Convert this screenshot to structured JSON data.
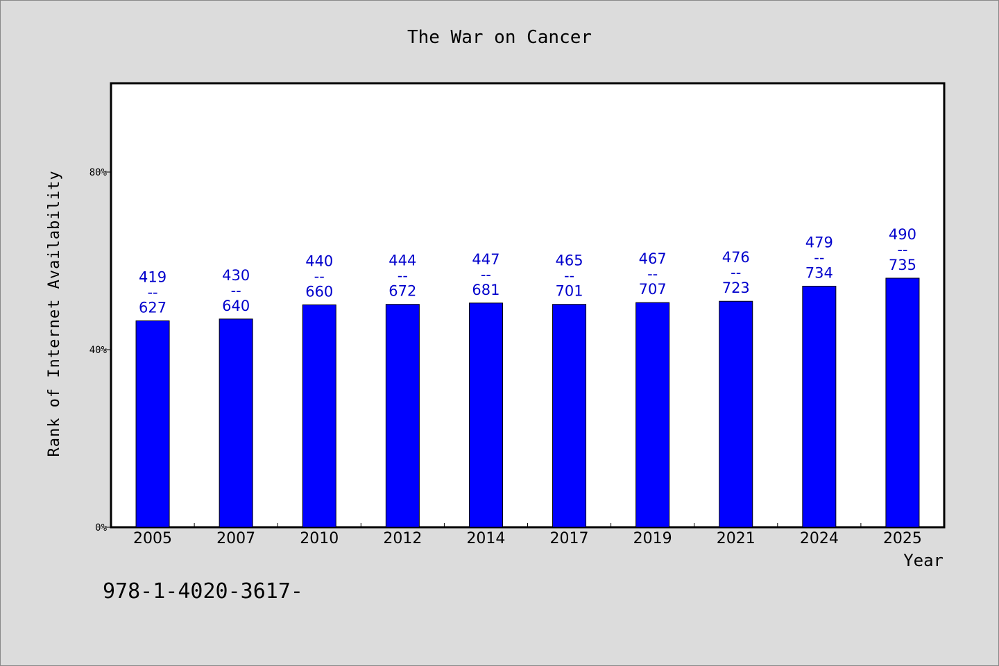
{
  "chart_data": {
    "type": "bar",
    "title": "The War on Cancer",
    "xlabel": "Year",
    "ylabel": "Rank of Internet Availability",
    "categories": [
      "2005",
      "2007",
      "2010",
      "2012",
      "2014",
      "2017",
      "2019",
      "2021",
      "2024",
      "2025"
    ],
    "values": [
      46.5,
      46.9,
      50.1,
      50.2,
      50.5,
      50.2,
      50.6,
      50.9,
      54.3,
      56.1
    ],
    "data_labels": [
      {
        "top": "419",
        "sep": "--",
        "bottom": "627"
      },
      {
        "top": "430",
        "sep": "--",
        "bottom": "640"
      },
      {
        "top": "440",
        "sep": "--",
        "bottom": "660"
      },
      {
        "top": "444",
        "sep": "--",
        "bottom": "672"
      },
      {
        "top": "447",
        "sep": "--",
        "bottom": "681"
      },
      {
        "top": "465",
        "sep": "--",
        "bottom": "701"
      },
      {
        "top": "467",
        "sep": "--",
        "bottom": "707"
      },
      {
        "top": "476",
        "sep": "--",
        "bottom": "723"
      },
      {
        "top": "479",
        "sep": "--",
        "bottom": "734"
      },
      {
        "top": "490",
        "sep": "--",
        "bottom": "735"
      }
    ],
    "yticks": [
      0,
      40,
      80
    ],
    "ytick_labels": [
      "0%",
      "40%",
      "80%"
    ],
    "ylim": [
      0,
      100
    ],
    "grid": false,
    "bar_color": "#0000ff",
    "label_color": "#0000cc"
  },
  "footer": {
    "isbn": "978-1-4020-3617-"
  }
}
